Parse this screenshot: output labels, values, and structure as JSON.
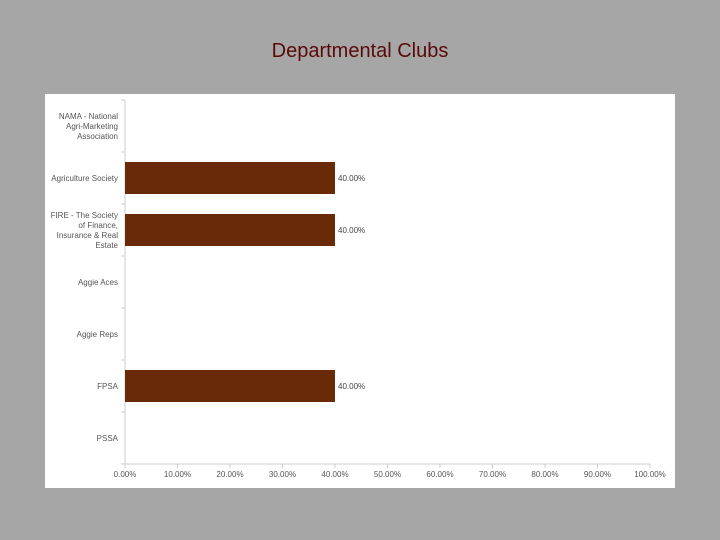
{
  "slide": {
    "title": "Departmental Clubs"
  },
  "colors": {
    "background": "#a6a6a6",
    "panel": "#ffffff",
    "bar": "#6b2a07",
    "title": "#5a0a0a",
    "axis": "#cccccc"
  },
  "chart_data": {
    "type": "bar",
    "orientation": "horizontal",
    "categories": [
      [
        "NAMA - National",
        "Agri-Marketing",
        "Association"
      ],
      [
        "Agriculture Society"
      ],
      [
        "FIRE - The Society",
        "of Finance,",
        "Insurance & Real",
        "Estate"
      ],
      [
        "Aggie Aces"
      ],
      [
        "Aggie Reps"
      ],
      [
        "FPSA"
      ],
      [
        "PSSA"
      ]
    ],
    "values": [
      0,
      40,
      40,
      0,
      0,
      40,
      0
    ],
    "data_labels": [
      "",
      "40.00%",
      "40.00%",
      "",
      "",
      "40.00%",
      ""
    ],
    "xlim": [
      0,
      100
    ],
    "xticks": [
      "0.00%",
      "10.00%",
      "20.00%",
      "30.00%",
      "40.00%",
      "50.00%",
      "60.00%",
      "70.00%",
      "80.00%",
      "90.00%",
      "100.00%"
    ],
    "grid": false,
    "legend": "none"
  }
}
